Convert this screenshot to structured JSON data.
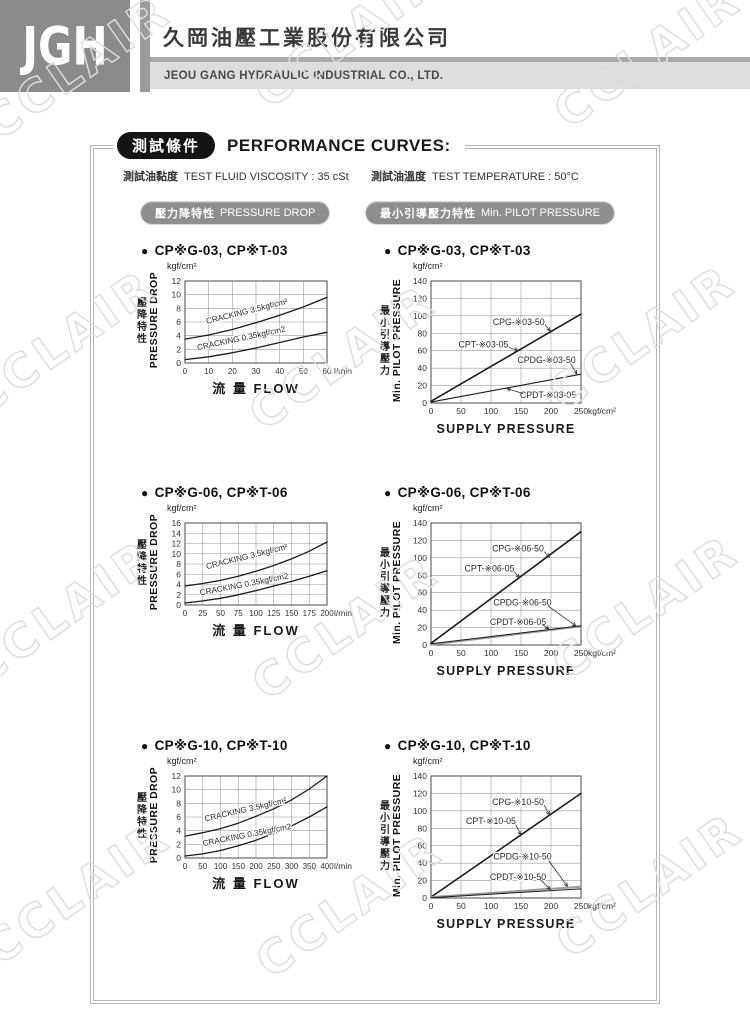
{
  "watermark": {
    "text": "CCLAIR"
  },
  "header": {
    "logo": "JGH",
    "company_cn": "久岡油壓工業股份有限公司",
    "company_en": "JEOU GANG HYDRAULIC INDUSTRIAL CO., LTD."
  },
  "intro": {
    "badge": "測試條件",
    "title": "PERFORMANCE CURVES:",
    "viscosity_cn": "測試油黏度",
    "viscosity_en": "TEST FLUID VISCOSITY : 35 cSt",
    "temperature_cn": "測試油溫度",
    "temperature_en": "TEST TEMPERATURE : 50°C",
    "left_badge_cn": "壓力降特性",
    "left_badge_en": "PRESSURE DROP",
    "right_badge_cn": "最小引導壓力特性",
    "right_badge_en": "Min. PILOT PRESSURE"
  },
  "chart_data": [
    {
      "type": "line",
      "panel": "pressure-drop",
      "side": "left",
      "title": "CP※G-03, CP※T-03",
      "y_unit": "kgf/cm²",
      "x_unit": "l/min",
      "ylabel_cn": "壓降特性",
      "ylabel_en": "PRESSURE DROP",
      "xlabel": "流 量 FLOW",
      "xlim": [
        0,
        60
      ],
      "xticks": [
        0,
        10,
        20,
        30,
        40,
        50,
        60
      ],
      "ylim": [
        0,
        12
      ],
      "yticks": [
        0,
        2,
        4,
        6,
        8,
        10,
        12
      ],
      "series": [
        {
          "name": "CRACKING 3.5kgf/cm²",
          "x": [
            0,
            10,
            20,
            30,
            40,
            50,
            60
          ],
          "y": [
            3.5,
            4.1,
            4.9,
            5.9,
            7.0,
            8.2,
            9.6
          ],
          "color": "#1c1c1c",
          "width": 1.3,
          "label": {
            "fx": 0.44,
            "fy": 0.4,
            "angle": -14
          }
        },
        {
          "name": "CRACKING 0.35kgf/cm2",
          "x": [
            0,
            10,
            20,
            30,
            40,
            50,
            60
          ],
          "y": [
            0.5,
            0.9,
            1.5,
            2.2,
            3.0,
            3.8,
            4.5
          ],
          "color": "#1c1c1c",
          "width": 1.3,
          "label": {
            "fx": 0.4,
            "fy": 0.73,
            "angle": -12
          }
        }
      ]
    },
    {
      "type": "line",
      "panel": "pilot-pressure",
      "side": "right",
      "title": "CP※G-03, CP※T-03",
      "y_unit": "kgf/cm²",
      "x_unit": "kgf/cm²",
      "ylabel_cn": "最小引導壓力",
      "ylabel_en": "Min. PILOT PRESSURE",
      "xlabel": "SUPPLY PRESSURE",
      "xlim": [
        0,
        250
      ],
      "xticks": [
        0,
        50,
        100,
        150,
        200,
        250
      ],
      "ylim": [
        0,
        140
      ],
      "yticks": [
        0,
        20,
        40,
        60,
        80,
        100,
        120,
        140
      ],
      "series": [
        {
          "name": "CPG-※03-50 / CPT-※03-05",
          "x": [
            0,
            250
          ],
          "y": [
            2,
            102
          ],
          "color": "#1c1c1c",
          "width": 1.6
        },
        {
          "name": "CPDG-※03-50 / CPDT-※03-05",
          "x": [
            0,
            250
          ],
          "y": [
            1,
            33
          ],
          "color": "#1c1c1c",
          "width": 1.1
        }
      ],
      "labels": [
        {
          "text": "CPG-※03-50",
          "fx": 0.585,
          "fy": 0.335,
          "leader": [
            0.76,
            0.36,
            0.795,
            0.41
          ]
        },
        {
          "text": "CPT-※03-05",
          "fx": 0.35,
          "fy": 0.52,
          "leader": [
            0.52,
            0.545,
            0.58,
            0.57
          ]
        },
        {
          "text": "CPDG-※03-50",
          "fx": 0.77,
          "fy": 0.648,
          "leader": [
            0.93,
            0.675,
            0.972,
            0.762
          ]
        },
        {
          "text": "CPDT-※03-05",
          "fx": 0.78,
          "fy": 0.935,
          "leader": [
            0.615,
            0.922,
            0.506,
            0.882
          ]
        }
      ]
    },
    {
      "type": "line",
      "panel": "pressure-drop",
      "side": "left",
      "title": "CP※G-06, CP※T-06",
      "y_unit": "kgf/cm²",
      "x_unit": "l/min",
      "ylabel_cn": "壓降特性",
      "ylabel_en": "PRESSURE DROP",
      "xlabel": "流 量 FLOW",
      "xlim": [
        0,
        200
      ],
      "xticks": [
        0,
        25,
        50,
        75,
        100,
        125,
        150,
        175,
        200
      ],
      "ylim": [
        0,
        16
      ],
      "yticks": [
        0,
        2,
        4,
        6,
        8,
        10,
        12,
        14,
        16
      ],
      "series": [
        {
          "name": "CRACKING 3.5kgf/cm²",
          "x": [
            0,
            25,
            50,
            75,
            100,
            125,
            150,
            175,
            200
          ],
          "y": [
            3.7,
            4.2,
            4.8,
            5.6,
            6.6,
            7.7,
            9.0,
            10.5,
            12.3
          ],
          "color": "#1c1c1c",
          "width": 1.3,
          "label": {
            "fx": 0.44,
            "fy": 0.44,
            "angle": -14
          }
        },
        {
          "name": "CRACKING 0.35kgf/cm2",
          "x": [
            0,
            25,
            50,
            75,
            100,
            125,
            150,
            175,
            200
          ],
          "y": [
            0.4,
            0.8,
            1.3,
            2.0,
            2.8,
            3.7,
            4.6,
            5.6,
            6.7
          ],
          "color": "#1c1c1c",
          "width": 1.3,
          "label": {
            "fx": 0.42,
            "fy": 0.78,
            "angle": -11
          }
        }
      ]
    },
    {
      "type": "line",
      "panel": "pilot-pressure",
      "side": "right",
      "title": "CP※G-06, CP※T-06",
      "y_unit": "kgf/cm²",
      "x_unit": "kgf/cm²",
      "ylabel_cn": "最小引導壓力",
      "ylabel_en": "Min. PILOT PRESSURE",
      "xlabel": "SUPPLY PRESSURE",
      "xlim": [
        0,
        250
      ],
      "xticks": [
        0,
        50,
        100,
        150,
        200,
        250
      ],
      "ylim": [
        0,
        140
      ],
      "yticks": [
        0,
        20,
        40,
        60,
        80,
        100,
        120,
        140
      ],
      "series": [
        {
          "name": "CPG-※06-50 / CPT-※06-05",
          "x": [
            0,
            250
          ],
          "y": [
            2,
            130
          ],
          "color": "#1c1c1c",
          "width": 1.6
        },
        {
          "name": "CPDG-※06-50",
          "x": [
            0,
            250
          ],
          "y": [
            0.5,
            21.5
          ],
          "color": "#9a9a9a",
          "width": 2
        },
        {
          "name": "CPDT-※06-05",
          "x": [
            0,
            250
          ],
          "y": [
            1.5,
            22
          ],
          "color": "#1c1c1c",
          "width": 1
        }
      ],
      "labels": [
        {
          "text": "CPG-※06-50",
          "fx": 0.58,
          "fy": 0.21,
          "leader": [
            0.755,
            0.235,
            0.79,
            0.28
          ]
        },
        {
          "text": "CPT-※06-05",
          "fx": 0.39,
          "fy": 0.374,
          "leader": [
            0.555,
            0.4,
            0.59,
            0.448
          ]
        },
        {
          "text": "CPDG-※06-50",
          "fx": 0.61,
          "fy": 0.65,
          "leader": [
            0.78,
            0.68,
            0.965,
            0.843
          ]
        },
        {
          "text": "CPDT-※06-05",
          "fx": 0.58,
          "fy": 0.81,
          "leader": [
            0.745,
            0.835,
            0.785,
            0.868
          ]
        }
      ]
    },
    {
      "type": "line",
      "panel": "pressure-drop",
      "side": "left",
      "title": "CP※G-10, CP※T-10",
      "y_unit": "kgf/cm²",
      "x_unit": "l/min",
      "ylabel_cn": "壓降特性",
      "ylabel_en": "PRESSURE DROP",
      "xlabel": "流 量 FLOW",
      "xlim": [
        0,
        400
      ],
      "xticks": [
        0,
        50,
        100,
        150,
        200,
        250,
        300,
        350,
        400
      ],
      "ylim": [
        0,
        12
      ],
      "yticks": [
        0,
        2,
        4,
        6,
        8,
        10,
        12
      ],
      "series": [
        {
          "name": "CRACKING 3.5kgf/cm²",
          "x": [
            0,
            50,
            100,
            150,
            200,
            250,
            300,
            350,
            400
          ],
          "y": [
            3.2,
            3.7,
            4.3,
            5.1,
            6.1,
            7.2,
            8.5,
            10.1,
            12.0
          ],
          "color": "#1c1c1c",
          "width": 1.3,
          "label": {
            "fx": 0.43,
            "fy": 0.44,
            "angle": -13
          }
        },
        {
          "name": "CRACKING 0.35kgf/cm2",
          "x": [
            0,
            50,
            100,
            150,
            200,
            250,
            300,
            350,
            400
          ],
          "y": [
            0.3,
            0.6,
            1.1,
            1.8,
            2.6,
            3.6,
            4.7,
            6.0,
            7.5
          ],
          "color": "#1c1c1c",
          "width": 1.3,
          "label": {
            "fx": 0.44,
            "fy": 0.75,
            "angle": -11
          }
        }
      ]
    },
    {
      "type": "line",
      "panel": "pilot-pressure",
      "side": "right",
      "title": "CP※G-10, CP※T-10",
      "y_unit": "kgf/cm²",
      "x_unit": "kgf/cm²",
      "ylabel_cn": "最小引導壓力",
      "ylabel_en": "Min. PILOT PRESSURE",
      "xlabel": "SUPPLY PRESSURE",
      "xlim": [
        0,
        250
      ],
      "xticks": [
        0,
        50,
        100,
        150,
        200,
        250
      ],
      "ylim": [
        0,
        140
      ],
      "yticks": [
        0,
        20,
        40,
        60,
        80,
        100,
        120,
        140
      ],
      "series": [
        {
          "name": "CPG-※10-50 / CPT-※10-05",
          "x": [
            0,
            250
          ],
          "y": [
            1,
            120
          ],
          "color": "#1c1c1c",
          "width": 1.6
        },
        {
          "name": "CPDG-※10-50",
          "x": [
            0,
            250
          ],
          "y": [
            1,
            13
          ],
          "color": "#9a9a9a",
          "width": 2
        },
        {
          "text": "",
          "name": "CPDT-※10-50",
          "x": [
            0,
            250
          ],
          "y": [
            0.3,
            10.5
          ],
          "color": "#1c1c1c",
          "width": 1
        }
      ],
      "labels": [
        {
          "text": "CPG-※10-50",
          "fx": 0.58,
          "fy": 0.215,
          "leader": [
            0.755,
            0.24,
            0.79,
            0.318
          ]
        },
        {
          "text": "CPT-※10-05",
          "fx": 0.4,
          "fy": 0.37,
          "leader": [
            0.565,
            0.4,
            0.6,
            0.483
          ]
        },
        {
          "text": "CPDG-※10-50",
          "fx": 0.61,
          "fy": 0.66,
          "leader": [
            0.785,
            0.695,
            0.91,
            0.905
          ]
        },
        {
          "text": "CPDT-※10-50",
          "fx": 0.58,
          "fy": 0.826,
          "leader": [
            0.73,
            0.85,
            0.795,
            0.93
          ]
        }
      ]
    }
  ]
}
